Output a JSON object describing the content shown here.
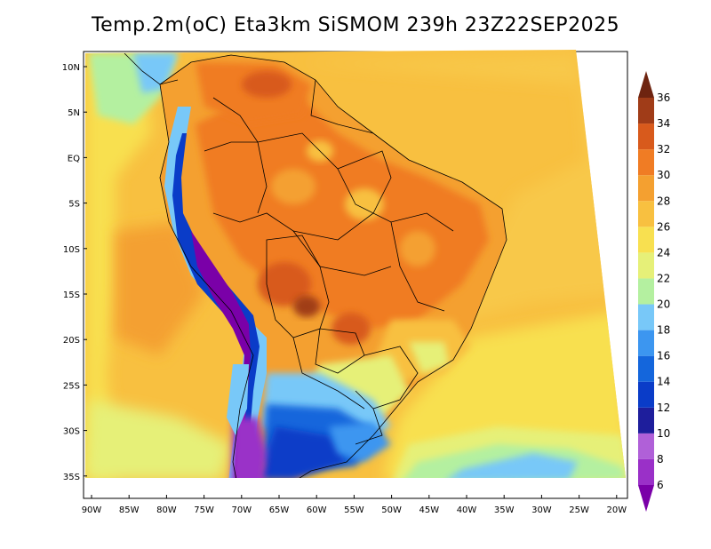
{
  "title": "Temp.2m(oC) Eta3km SiSMOM 239h 23Z22SEP2025",
  "map": {
    "lat_labels": [
      "10N",
      "5N",
      "EQ",
      "5S",
      "10S",
      "15S",
      "20S",
      "25S",
      "30S",
      "35S"
    ],
    "lon_labels": [
      "90W",
      "85W",
      "80W",
      "75W",
      "70W",
      "65W",
      "60W",
      "55W",
      "50W",
      "45W",
      "40W",
      "35W",
      "30W",
      "25W",
      "20W"
    ]
  },
  "colorbar": {
    "levels": [
      "6",
      "8",
      "10",
      "12",
      "14",
      "16",
      "18",
      "20",
      "22",
      "24",
      "26",
      "28",
      "30",
      "32",
      "34",
      "36"
    ],
    "colors": [
      "#7a00a8",
      "#9a30c8",
      "#b060d8",
      "#1e1e9c",
      "#0a3cc8",
      "#1466dc",
      "#3c96f0",
      "#78c8f8",
      "#b4f0a0",
      "#e6f078",
      "#f8e050",
      "#f8c040",
      "#f4a030",
      "#f07c24",
      "#d85a1c",
      "#a03c18",
      "#6e2410"
    ]
  }
}
